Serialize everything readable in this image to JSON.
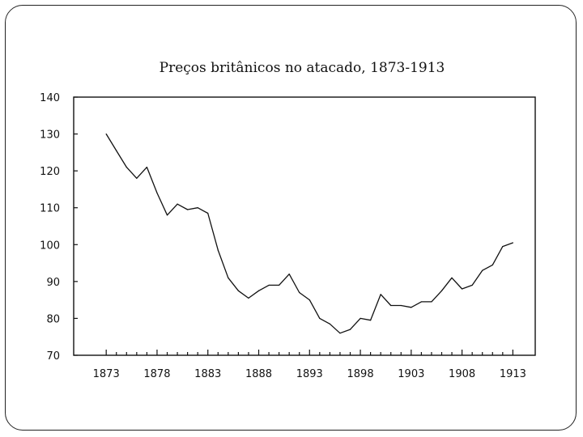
{
  "chart_data": {
    "type": "line",
    "title": "Preços britânicos no atacado, 1873-1913",
    "xlabel": "",
    "ylabel": "",
    "xlim": [
      1873,
      1913
    ],
    "ylim": [
      70,
      140
    ],
    "x_ticks": [
      "1873",
      "1878",
      "1883",
      "1888",
      "1893",
      "1898",
      "1903",
      "1908",
      "1913"
    ],
    "y_ticks": [
      "140",
      "130",
      "120",
      "110",
      "100",
      "90",
      "80",
      "70"
    ],
    "grid": false,
    "series": [
      {
        "x": [
          1873,
          1874,
          1875,
          1876,
          1877,
          1878,
          1879,
          1880,
          1881,
          1882,
          1883,
          1884,
          1885,
          1886,
          1887,
          1888,
          1889,
          1890,
          1891,
          1892,
          1893,
          1894,
          1895,
          1896,
          1897,
          1898,
          1899,
          1900,
          1901,
          1902,
          1903,
          1904,
          1905,
          1906,
          1907,
          1908,
          1909,
          1910,
          1911,
          1912,
          1913
        ],
        "y": [
          130,
          125.5,
          121,
          118,
          121,
          114,
          108,
          111,
          109.5,
          110,
          108.5,
          98.5,
          91,
          87.5,
          85.5,
          87.5,
          89,
          89,
          92,
          87,
          85,
          80,
          78.5,
          76,
          77,
          80,
          79.5,
          86.5,
          83.5,
          83.5,
          83,
          84.5,
          84.5,
          87.5,
          91,
          88,
          89,
          93,
          94.5,
          99.5,
          100.5
        ]
      }
    ]
  }
}
